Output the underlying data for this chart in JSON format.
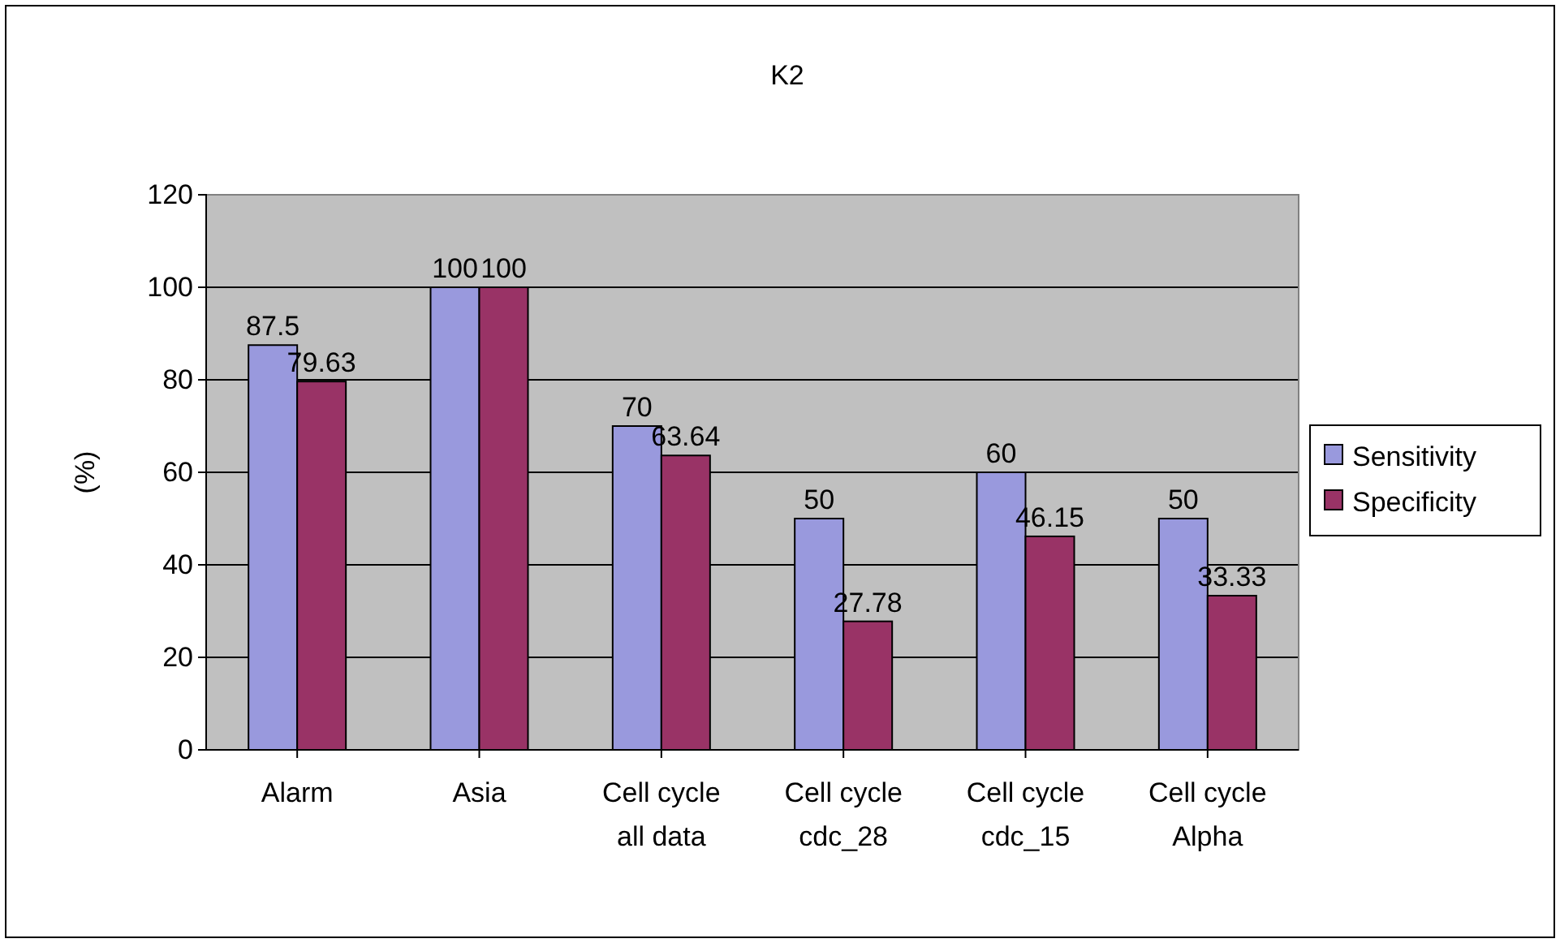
{
  "chart_data": {
    "type": "bar",
    "title": "K2",
    "ylabel": "(%)",
    "categories": [
      "Alarm",
      "Asia",
      "Cell cycle all data",
      "Cell cycle cdc_28",
      "Cell cycle cdc_15",
      "Cell cycle Alpha"
    ],
    "series": [
      {
        "name": "Sensitivity",
        "color": "#9999dd",
        "values": [
          87.5,
          100,
          70,
          50,
          60,
          50
        ]
      },
      {
        "name": "Specificity",
        "color": "#993366",
        "values": [
          79.63,
          100,
          63.64,
          27.78,
          46.15,
          33.33
        ]
      }
    ],
    "ylim": [
      0,
      120
    ],
    "yticks": [
      0,
      20,
      40,
      60,
      80,
      100,
      120
    ],
    "grid": "y",
    "legend": "right",
    "data_labels": true
  }
}
